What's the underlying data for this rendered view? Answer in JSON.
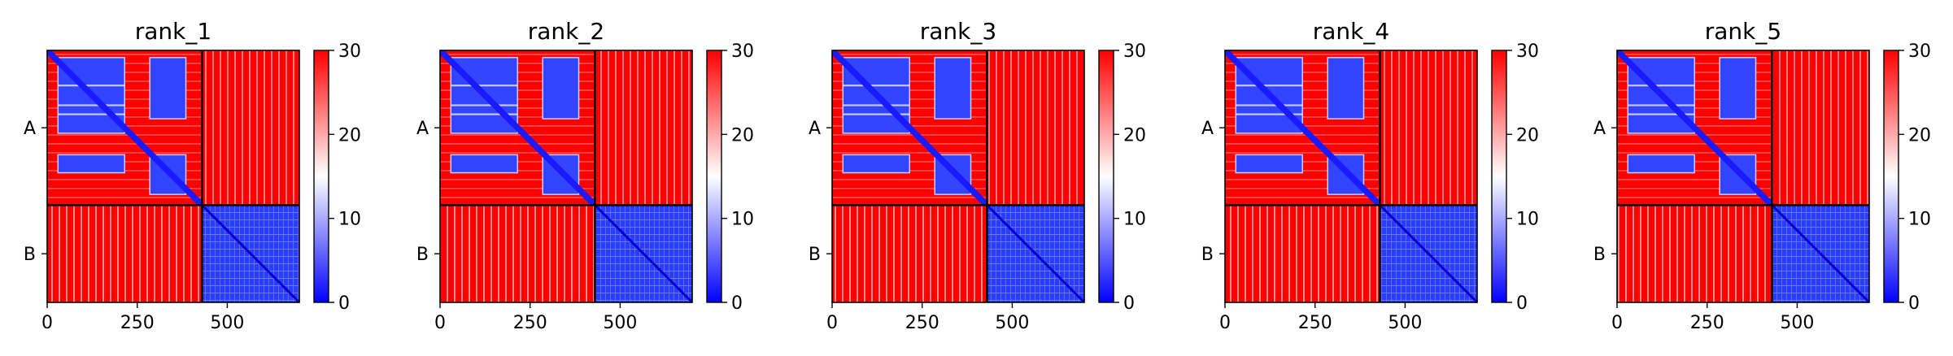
{
  "chart_data": {
    "type": "heatmap",
    "colormap": {
      "min_color": "#0000ff",
      "mid_color": "#ffffff",
      "max_color": "#ff0000"
    },
    "color_range": [
      0,
      30
    ],
    "colorbar_ticks": [
      "0",
      "10",
      "20",
      "30"
    ],
    "x_range": [
      0,
      700
    ],
    "x_ticks": [
      0,
      250,
      500
    ],
    "x_tick_labels": [
      "0",
      "250",
      "500"
    ],
    "chain_boundary": 430,
    "chains": [
      "A",
      "B"
    ],
    "panels": [
      {
        "title": "rank_1"
      },
      {
        "title": "rank_2"
      },
      {
        "title": "rank_3"
      },
      {
        "title": "rank_4"
      },
      {
        "title": "rank_5"
      }
    ]
  }
}
